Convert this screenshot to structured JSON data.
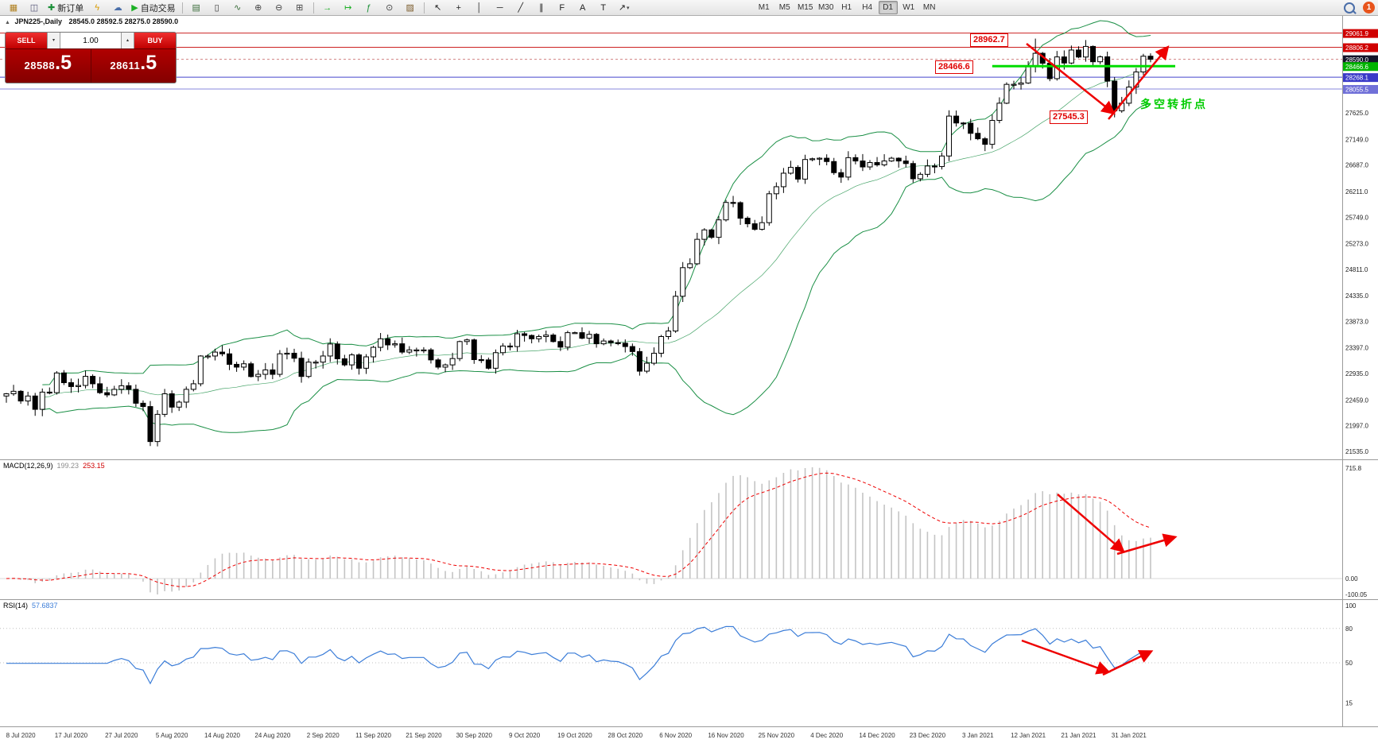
{
  "toolbar": {
    "buttons": [
      {
        "name": "new-chart-button",
        "glyph": "▦",
        "color": "#b08020"
      },
      {
        "name": "profiles-button",
        "glyph": "◫",
        "color": "#555577"
      },
      {
        "name": "new-order-button",
        "glyph": "✚",
        "color": "#1a8f37",
        "label": "新订单"
      },
      {
        "name": "metaeditor-button",
        "glyph": "ϟ",
        "color": "#d89a00"
      },
      {
        "name": "community-button",
        "glyph": "☁",
        "color": "#4a6ea9"
      },
      {
        "name": "autotrading-button",
        "glyph": "▶",
        "color": "#1bb024",
        "label": "自动交易"
      },
      {
        "name": "separator",
        "sep": true
      },
      {
        "name": "bar-chart-button",
        "glyph": "▤",
        "color": "#3c6e3c"
      },
      {
        "name": "candlestick-chart-button",
        "glyph": "▯",
        "color": "#333333"
      },
      {
        "name": "line-chart-button",
        "glyph": "∿",
        "color": "#3c6e3c"
      },
      {
        "name": "zoom-in-button",
        "glyph": "⊕",
        "color": "#444444"
      },
      {
        "name": "zoom-out-button",
        "glyph": "⊖",
        "color": "#444444"
      },
      {
        "name": "tile-windows-button",
        "glyph": "⊞",
        "color": "#444444"
      },
      {
        "name": "separator",
        "sep": true
      },
      {
        "name": "auto-scroll-button",
        "glyph": "→",
        "color": "#1bb024"
      },
      {
        "name": "chart-shift-button",
        "glyph": "↦",
        "color": "#1bb024"
      },
      {
        "name": "indicators-button",
        "glyph": "ƒ",
        "color": "#1a8f37"
      },
      {
        "name": "periods-button",
        "glyph": "⊙",
        "color": "#444444"
      },
      {
        "name": "templates-button",
        "glyph": "▨",
        "color": "#7a5a2a"
      },
      {
        "name": "separator",
        "sep": true
      },
      {
        "name": "cursor-tool-button",
        "glyph": "↖",
        "color": "#222222"
      },
      {
        "name": "crosshair-tool-button",
        "glyph": "+",
        "color": "#222222"
      },
      {
        "name": "vertical-line-tool-button",
        "glyph": "│",
        "color": "#222222"
      },
      {
        "name": "horizontal-line-tool-button",
        "glyph": "─",
        "color": "#222222"
      },
      {
        "name": "trendline-tool-button",
        "glyph": "╱",
        "color": "#222222"
      },
      {
        "name": "channel-tool-button",
        "glyph": "∥",
        "color": "#222222"
      },
      {
        "name": "fibonacci-tool-button",
        "glyph": "F",
        "color": "#222222"
      },
      {
        "name": "text-tool-button",
        "glyph": "A",
        "color": "#222222"
      },
      {
        "name": "label-tool-button",
        "glyph": "T",
        "color": "#222222"
      },
      {
        "name": "shapes-tool-button",
        "glyph": "↗",
        "color": "#222222",
        "dropdown": "▾"
      }
    ],
    "timeframes": [
      "M1",
      "M5",
      "M15",
      "M30",
      "H1",
      "H4",
      "D1",
      "W1",
      "MN"
    ],
    "active_timeframe": "D1",
    "notification_count": "1"
  },
  "chart_header": {
    "collapse": "▲",
    "symbol_period": "JPN225-,Daily",
    "ohlc": "28545.0 28592.5 28275.0 28590.0"
  },
  "one_click": {
    "sell_label": "SELL",
    "buy_label": "BUY",
    "volume": "1.00",
    "spin_up": "▴",
    "spin_down": "▾",
    "sell_price_main": "28588",
    "sell_price_big": ".5",
    "buy_price_main": "28611",
    "buy_price_big": ".5"
  },
  "price_axis": {
    "highlighted": [
      {
        "value": "29061.9",
        "bg": "#d00000"
      },
      {
        "value": "28806.2",
        "bg": "#d00000"
      },
      {
        "value": "28590.0",
        "bg": "#14142a"
      },
      {
        "value": "28466.6",
        "bg": "#00b400"
      },
      {
        "value": "28268.1",
        "bg": "#3a3ac8"
      },
      {
        "value": "28055.5",
        "bg": "#7070d8"
      }
    ],
    "plain": [
      "27625.0",
      "27149.0",
      "26687.0",
      "26211.0",
      "25749.0",
      "25273.0",
      "24811.0",
      "24335.0",
      "23873.0",
      "23397.0",
      "22935.0",
      "22459.0",
      "21997.0",
      "21535.0"
    ]
  },
  "macd_panel": {
    "name": "MACD(12,26,9)",
    "value": "199.23",
    "signal": "253.15",
    "axis_top": "715.8",
    "axis_zero": "0.00",
    "axis_bottom": "-100.05"
  },
  "rsi_panel": {
    "name": "RSI(14)",
    "value": "57.6837",
    "axis": [
      "100",
      "80",
      "50",
      "15"
    ],
    "levels": [
      80,
      50
    ]
  },
  "annotations": {
    "high_label": "28962.7",
    "mid_label": "28466.6",
    "low_label": "27545.3",
    "note": "多空转折点",
    "note_color": "#00cc00",
    "arrow_color": "#ee0000",
    "arrows": [
      {
        "name": "price-down-arrow",
        "from": [
          1291,
          55
        ],
        "to": [
          1400,
          142
        ]
      },
      {
        "name": "price-up-arrow",
        "from": [
          1394,
          150
        ],
        "to": [
          1468,
          60
        ]
      },
      {
        "name": "macd-down-arrow",
        "from": [
          1330,
          622
        ],
        "to": [
          1412,
          693
        ]
      },
      {
        "name": "macd-up-arrow",
        "from": [
          1405,
          697
        ],
        "to": [
          1477,
          676
        ]
      },
      {
        "name": "rsi-down-arrow",
        "from": [
          1285,
          806
        ],
        "to": [
          1393,
          845
        ]
      },
      {
        "name": "rsi-up-arrow",
        "from": [
          1387,
          849
        ],
        "to": [
          1447,
          820
        ]
      }
    ]
  },
  "chart_data": {
    "type": "candlestick",
    "symbol": "JPN225-",
    "period": "Daily",
    "title": "JPN225-,Daily",
    "ohlc_display": {
      "open": 28545.0,
      "high": 28592.5,
      "low": 28275.0,
      "close": 28590.0
    },
    "current_price": 28590.0,
    "y_range": [
      21390,
      29400
    ],
    "x_labels": [
      "8 Jul 2020",
      "17 Jul 2020",
      "27 Jul 2020",
      "5 Aug 2020",
      "14 Aug 2020",
      "24 Aug 2020",
      "2 Sep 2020",
      "11 Sep 2020",
      "21 Sep 2020",
      "30 Sep 2020",
      "9 Oct 2020",
      "19 Oct 2020",
      "28 Oct 2020",
      "6 Nov 2020",
      "16 Nov 2020",
      "25 Nov 2020",
      "4 Dec 2020",
      "14 Dec 2020",
      "23 Dec 2020",
      "3 Jan 2021",
      "12 Jan 2021",
      "21 Jan 2021",
      "31 Jan 2021"
    ],
    "first_label_index": 2,
    "label_every": 7,
    "closes": [
      22570,
      22615,
      22440,
      22530,
      22290,
      22600,
      22590,
      22945,
      22770,
      22700,
      22720,
      22884,
      22750,
      22590,
      22550,
      22650,
      22715,
      22650,
      22400,
      22340,
      21710,
      22200,
      22570,
      22330,
      22420,
      22650,
      22750,
      23250,
      23250,
      23320,
      23289,
      23100,
      23050,
      23110,
      22880,
      22920,
      23000,
      22920,
      23290,
      23300,
      23210,
      22882,
      23140,
      23140,
      23250,
      23466,
      23200,
      23090,
      23270,
      23030,
      23235,
      23406,
      23560,
      23450,
      23470,
      23320,
      23360,
      23360,
      23360,
      23180,
      23050,
      23090,
      23204,
      23510,
      23540,
      23185,
      23180,
      23030,
      23310,
      23430,
      23420,
      23650,
      23620,
      23560,
      23600,
      23627,
      23510,
      23410,
      23670,
      23670,
      23570,
      23640,
      23470,
      23520,
      23490,
      23480,
      23420,
      23330,
      22977,
      23120,
      23300,
      23600,
      23700,
      24325,
      24840,
      24910,
      25350,
      25520,
      25386,
      25700,
      26014,
      26010,
      25730,
      25630,
      25530,
      25650,
      26170,
      26297,
      26540,
      26645,
      26434,
      26787,
      26800,
      26810,
      26750,
      26550,
      26470,
      26820,
      26760,
      26653,
      26732,
      26690,
      26760,
      26810,
      26760,
      26714,
      26440,
      26520,
      26670,
      26660,
      26850,
      27568,
      27444,
      27440,
      27258,
      27160,
      27060,
      27490,
      27800,
      28139,
      28140,
      28164,
      28456,
      28698,
      28519,
      28242,
      28633,
      28523,
      28757,
      28631,
      28822,
      28546,
      28635,
      28197,
      27663,
      27800,
      28091,
      28362,
      28646,
      28590
    ],
    "swing_high": {
      "index": 143,
      "price": 28962.7
    },
    "swing_low": {
      "index": 154,
      "price": 27545.3
    },
    "indicators": {
      "bollinger": {
        "period": 20,
        "deviation": 2,
        "color": "#1a8f45"
      },
      "macd": {
        "fast": 12,
        "slow": 26,
        "signal": 9,
        "value": 199.23,
        "signal_value": 253.15,
        "axis_max": 715.8,
        "axis_zero": 0.0,
        "axis_min": -100.05,
        "histogram_color": "#c4c4c4",
        "signal_color": "#ee0000"
      },
      "rsi": {
        "period": 14,
        "value": 57.6837,
        "color": "#3b7dd8",
        "levels": [
          80,
          50
        ],
        "axis_labels": [
          100,
          80,
          50,
          15
        ]
      }
    },
    "horizontal_levels": [
      {
        "price": 29061.9,
        "color": "#cc2222",
        "width": 1,
        "segment": false
      },
      {
        "price": 28806.2,
        "color": "#cc2222",
        "width": 1,
        "segment": false
      },
      {
        "price": 28268.1,
        "color": "#4444cc",
        "width": 1,
        "segment": false
      },
      {
        "price": 28055.5,
        "color": "#8888dd",
        "width": 1,
        "segment": false
      },
      {
        "price": 28466.6,
        "color": "#00dd00",
        "width": 3,
        "segment": true,
        "from_index": 137,
        "to_x": 1478
      }
    ]
  }
}
